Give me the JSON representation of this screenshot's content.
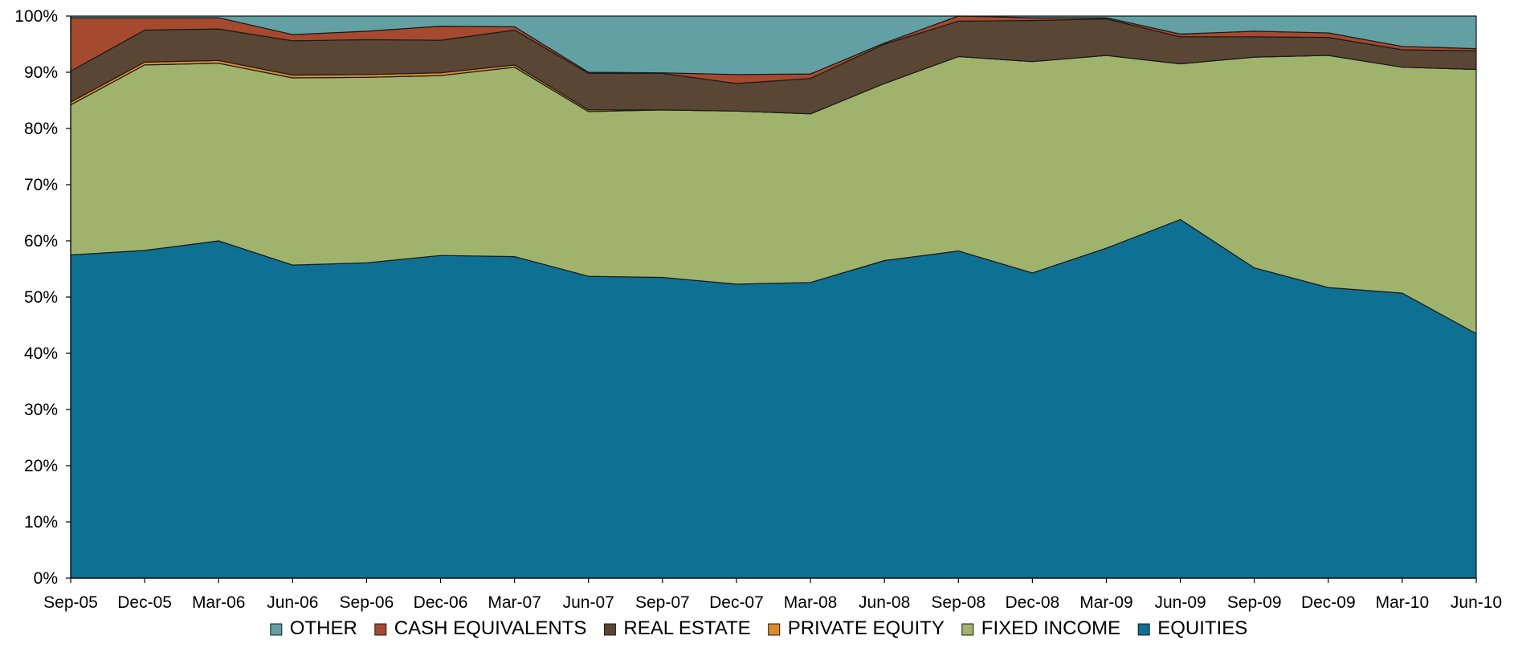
{
  "chart_data": {
    "type": "area",
    "stacked": true,
    "percent_axis": true,
    "x": [
      "Sep-05",
      "Dec-05",
      "Mar-06",
      "Jun-06",
      "Sep-06",
      "Dec-06",
      "Mar-07",
      "Jun-07",
      "Sep-07",
      "Dec-07",
      "Mar-08",
      "Jun-08",
      "Sep-08",
      "Dec-08",
      "Mar-09",
      "Jun-09",
      "Sep-09",
      "Dec-09",
      "Mar-10",
      "Jun-10"
    ],
    "y_ticks": [
      "0%",
      "10%",
      "20%",
      "30%",
      "40%",
      "50%",
      "60%",
      "70%",
      "80%",
      "90%",
      "100%"
    ],
    "ylim": [
      0,
      100
    ],
    "series": [
      {
        "name": "EQUITIES",
        "color": "#0e7092",
        "values": [
          57.5,
          58.3,
          60.0,
          55.7,
          56.1,
          57.4,
          57.2,
          53.7,
          53.5,
          52.3,
          52.6,
          56.5,
          58.2,
          54.3,
          58.7,
          63.8,
          55.2,
          51.7,
          50.7,
          43.5
        ]
      },
      {
        "name": "FIXED INCOME",
        "color": "#a0b36c",
        "values": [
          26.7,
          33.0,
          31.6,
          33.3,
          33.0,
          32.0,
          33.7,
          29.3,
          29.8,
          30.8,
          30.0,
          31.5,
          34.6,
          37.6,
          34.3,
          27.7,
          37.5,
          41.3,
          40.2,
          47.0
        ]
      },
      {
        "name": "PRIVATE EQUITY",
        "color": "#d98b2c",
        "values": [
          0.5,
          0.5,
          0.5,
          0.5,
          0.5,
          0.5,
          0.4,
          0.3,
          0.0,
          0.0,
          0.0,
          0.0,
          0.0,
          0.0,
          0.0,
          0.0,
          0.0,
          0.0,
          0.0,
          0.0
        ]
      },
      {
        "name": "REAL ESTATE",
        "color": "#5a4634",
        "values": [
          5.5,
          5.7,
          5.6,
          6.1,
          6.2,
          5.8,
          6.2,
          6.5,
          6.5,
          4.9,
          6.3,
          7.0,
          6.3,
          7.3,
          6.5,
          4.8,
          3.6,
          3.2,
          3.1,
          3.3
        ]
      },
      {
        "name": "CASH EQUIVALENTS",
        "color": "#a54a2e",
        "values": [
          9.5,
          2.2,
          2.0,
          1.1,
          1.5,
          2.5,
          0.6,
          0.2,
          0.1,
          1.6,
          0.8,
          0.2,
          0.9,
          0.5,
          0.2,
          0.5,
          1.0,
          0.8,
          0.6,
          0.4
        ]
      },
      {
        "name": "OTHER",
        "color": "#62a0a3",
        "values": [
          0.3,
          0.3,
          0.3,
          3.3,
          2.7,
          1.8,
          1.9,
          10.0,
          10.1,
          10.4,
          10.3,
          4.8,
          0.0,
          0.3,
          0.3,
          3.2,
          2.7,
          3.0,
          5.4,
          5.8
        ]
      }
    ],
    "legend_order": [
      "OTHER",
      "CASH EQUIVALENTS",
      "REAL ESTATE",
      "PRIVATE EQUITY",
      "FIXED INCOME",
      "EQUITIES"
    ],
    "legend_position": "bottom",
    "grid": false
  }
}
